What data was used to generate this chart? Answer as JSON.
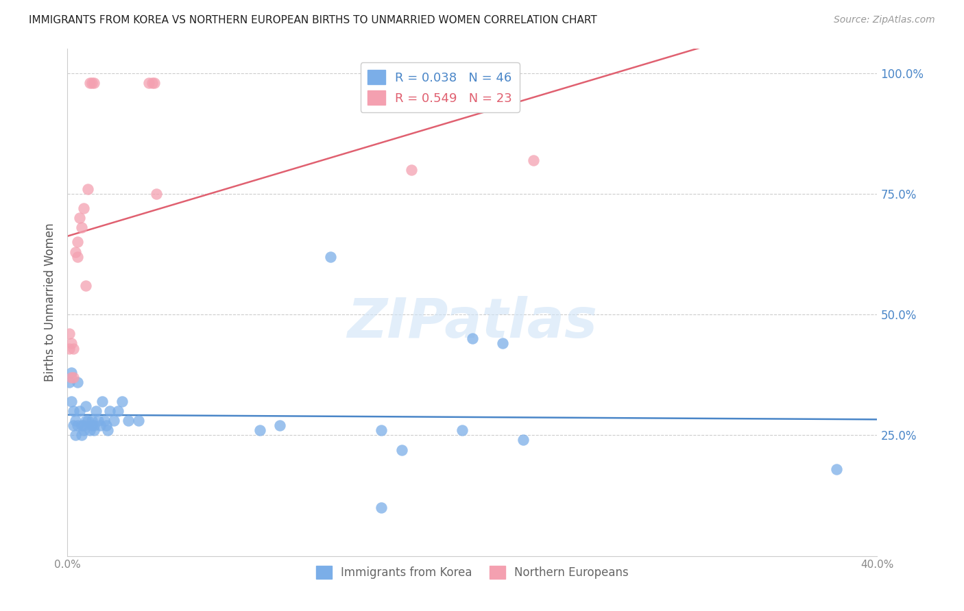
{
  "title": "IMMIGRANTS FROM KOREA VS NORTHERN EUROPEAN BIRTHS TO UNMARRIED WOMEN CORRELATION CHART",
  "source": "Source: ZipAtlas.com",
  "ylabel": "Births to Unmarried Women",
  "xlim": [
    0.0,
    0.4
  ],
  "ylim": [
    0.0,
    1.05
  ],
  "ytick_vals": [
    0.25,
    0.5,
    0.75,
    1.0
  ],
  "ytick_labels": [
    "25.0%",
    "50.0%",
    "75.0%",
    "100.0%"
  ],
  "xtick_positions": [
    0.0,
    0.08,
    0.16,
    0.24,
    0.32,
    0.4
  ],
  "xtick_labels": [
    "0.0%",
    "",
    "",
    "",
    "",
    "40.0%"
  ],
  "legend_entries": [
    {
      "label": "R = 0.038   N = 46",
      "color": "#7baee8"
    },
    {
      "label": "R = 0.549   N = 23",
      "color": "#f4a0b0"
    }
  ],
  "bottom_legend": [
    "Immigrants from Korea",
    "Northern Europeans"
  ],
  "watermark": "ZIPatlas",
  "blue_color": "#7baee8",
  "pink_color": "#f4a0b0",
  "blue_line_color": "#4a86c8",
  "pink_line_color": "#e06070",
  "korea_x": [
    0.001,
    0.002,
    0.002,
    0.003,
    0.003,
    0.004,
    0.004,
    0.005,
    0.005,
    0.006,
    0.007,
    0.007,
    0.008,
    0.008,
    0.009,
    0.009,
    0.01,
    0.011,
    0.012,
    0.012,
    0.013,
    0.013,
    0.014,
    0.015,
    0.016,
    0.017,
    0.018,
    0.019,
    0.02,
    0.021,
    0.023,
    0.025,
    0.027,
    0.03,
    0.035,
    0.095,
    0.105,
    0.13,
    0.155,
    0.165,
    0.195,
    0.2,
    0.215,
    0.225,
    0.155,
    0.38
  ],
  "korea_y": [
    0.36,
    0.38,
    0.32,
    0.3,
    0.27,
    0.28,
    0.25,
    0.36,
    0.27,
    0.3,
    0.27,
    0.25,
    0.27,
    0.26,
    0.31,
    0.28,
    0.28,
    0.26,
    0.28,
    0.27,
    0.27,
    0.26,
    0.3,
    0.28,
    0.27,
    0.32,
    0.28,
    0.27,
    0.26,
    0.3,
    0.28,
    0.3,
    0.32,
    0.28,
    0.28,
    0.26,
    0.27,
    0.62,
    0.26,
    0.22,
    0.26,
    0.45,
    0.44,
    0.24,
    0.1,
    0.18
  ],
  "northern_x": [
    0.001,
    0.001,
    0.002,
    0.002,
    0.003,
    0.003,
    0.004,
    0.005,
    0.005,
    0.006,
    0.007,
    0.008,
    0.009,
    0.01,
    0.011,
    0.012,
    0.013,
    0.04,
    0.042,
    0.043,
    0.044,
    0.17,
    0.23
  ],
  "northern_y": [
    0.43,
    0.46,
    0.44,
    0.37,
    0.43,
    0.37,
    0.63,
    0.65,
    0.62,
    0.7,
    0.68,
    0.72,
    0.56,
    0.76,
    0.98,
    0.98,
    0.98,
    0.98,
    0.98,
    0.98,
    0.75,
    0.8,
    0.82
  ]
}
